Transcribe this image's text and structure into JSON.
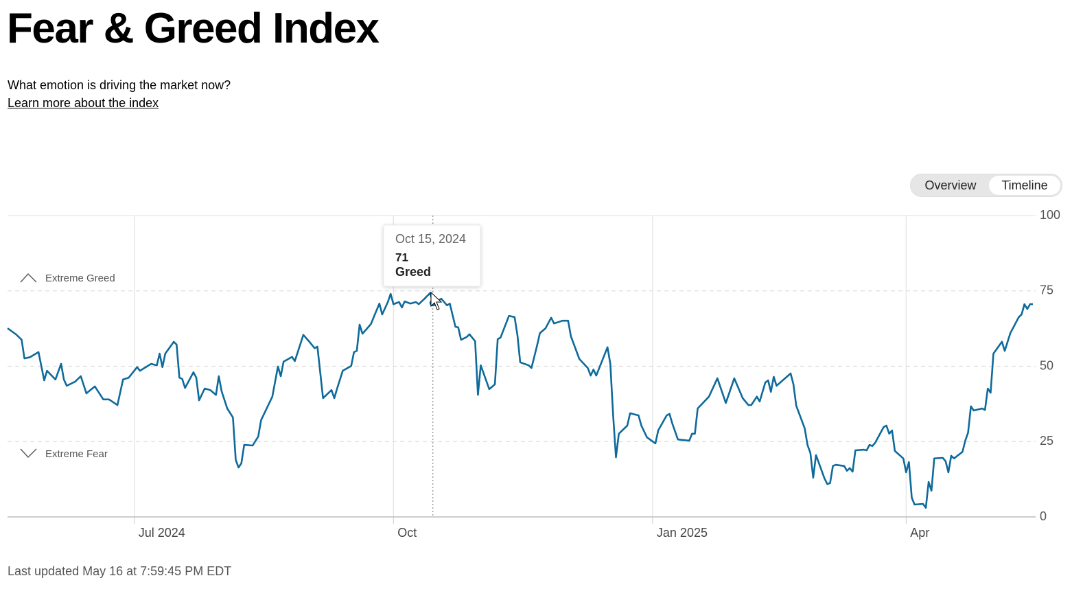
{
  "header": {
    "title": "Fear & Greed Index",
    "subtitle": "What emotion is driving the market now?",
    "link": "Learn more about the index"
  },
  "toggle": {
    "options": [
      "Overview",
      "Timeline"
    ],
    "selected": 1
  },
  "chart_data": {
    "type": "line",
    "color": "#0e6a9b",
    "x": [
      "2024-05-17",
      "2024-05-20",
      "2024-05-22",
      "2024-05-23",
      "2024-05-25",
      "2024-05-28",
      "2024-05-30",
      "2024-05-31",
      "2024-06-03",
      "2024-06-05",
      "2024-06-06",
      "2024-06-07",
      "2024-06-10",
      "2024-06-12",
      "2024-06-14",
      "2024-06-17",
      "2024-06-20",
      "2024-06-22",
      "2024-06-25",
      "2024-06-27",
      "2024-06-29",
      "2024-07-02",
      "2024-07-03",
      "2024-07-07",
      "2024-07-09",
      "2024-07-10",
      "2024-07-11",
      "2024-07-12",
      "2024-07-15",
      "2024-07-16",
      "2024-07-17",
      "2024-07-18",
      "2024-07-19",
      "2024-07-22",
      "2024-07-23",
      "2024-07-24",
      "2024-07-26",
      "2024-07-28",
      "2024-07-30",
      "2024-07-31",
      "2024-08-01",
      "2024-08-03",
      "2024-08-05",
      "2024-08-06",
      "2024-08-07",
      "2024-08-08",
      "2024-08-09",
      "2024-08-12",
      "2024-08-14",
      "2024-08-15",
      "2024-08-19",
      "2024-08-21",
      "2024-08-22",
      "2024-08-23",
      "2024-08-26",
      "2024-08-27",
      "2024-08-30",
      "2024-09-01",
      "2024-09-03",
      "2024-09-04",
      "2024-09-06",
      "2024-09-09",
      "2024-09-10",
      "2024-09-11",
      "2024-09-13",
      "2024-09-16",
      "2024-09-17",
      "2024-09-18",
      "2024-09-19",
      "2024-09-20",
      "2024-09-23",
      "2024-09-24",
      "2024-09-26",
      "2024-09-27",
      "2024-09-29",
      "2024-09-30",
      "2024-10-01",
      "2024-10-03",
      "2024-10-04",
      "2024-10-05",
      "2024-10-07",
      "2024-10-09",
      "2024-10-10",
      "2024-10-12",
      "2024-10-14",
      "2024-10-15",
      "2024-10-18",
      "2024-10-20",
      "2024-10-21",
      "2024-10-23",
      "2024-10-24",
      "2024-10-25",
      "2024-10-27",
      "2024-10-28",
      "2024-10-30",
      "2024-10-31",
      "2024-11-01",
      "2024-11-04",
      "2024-11-06",
      "2024-11-07",
      "2024-11-08",
      "2024-11-11",
      "2024-11-13",
      "2024-11-14",
      "2024-11-15",
      "2024-11-18",
      "2024-11-19",
      "2024-11-21",
      "2024-11-22",
      "2024-11-24",
      "2024-11-26",
      "2024-11-27",
      "2024-11-30",
      "2024-12-02",
      "2024-12-03",
      "2024-12-06",
      "2024-12-09",
      "2024-12-10",
      "2024-12-11",
      "2024-12-12",
      "2024-12-16",
      "2024-12-17",
      "2024-12-18",
      "2024-12-19",
      "2024-12-20",
      "2024-12-23",
      "2024-12-24",
      "2024-12-27",
      "2024-12-28",
      "2024-12-30",
      "2025-01-02",
      "2025-01-03",
      "2025-01-06",
      "2025-01-07",
      "2025-01-08",
      "2025-01-10",
      "2025-01-14",
      "2025-01-15",
      "2025-01-16",
      "2025-01-17",
      "2025-01-21",
      "2025-01-24",
      "2025-01-27",
      "2025-01-30",
      "2025-02-02",
      "2025-02-04",
      "2025-02-05",
      "2025-02-07",
      "2025-02-08",
      "2025-02-10",
      "2025-02-11",
      "2025-02-12",
      "2025-02-13",
      "2025-02-14",
      "2025-02-19",
      "2025-02-20",
      "2025-02-21",
      "2025-02-24",
      "2025-02-25",
      "2025-02-26",
      "2025-02-27",
      "2025-02-28",
      "2025-03-03",
      "2025-03-04",
      "2025-03-05",
      "2025-03-06",
      "2025-03-07",
      "2025-03-10",
      "2025-03-11",
      "2025-03-12",
      "2025-03-13",
      "2025-03-14",
      "2025-03-17",
      "2025-03-18",
      "2025-03-19",
      "2025-03-20",
      "2025-03-21",
      "2025-03-24",
      "2025-03-25",
      "2025-03-26",
      "2025-03-27",
      "2025-03-28",
      "2025-03-31",
      "2025-04-01",
      "2025-04-02",
      "2025-04-03",
      "2025-04-04",
      "2025-04-07",
      "2025-04-08",
      "2025-04-09",
      "2025-04-10",
      "2025-04-11",
      "2025-04-14",
      "2025-04-15",
      "2025-04-16",
      "2025-04-17",
      "2025-04-18",
      "2025-04-21",
      "2025-04-22",
      "2025-04-23",
      "2025-04-24",
      "2025-04-25",
      "2025-04-28",
      "2025-04-29",
      "2025-04-30",
      "2025-05-01",
      "2025-05-02",
      "2025-05-05",
      "2025-05-06",
      "2025-05-08",
      "2025-05-11",
      "2025-05-12",
      "2025-05-13",
      "2025-05-14",
      "2025-05-15",
      "2025-05-16"
    ],
    "values": [
      62.6,
      60.6,
      58.8,
      52.6,
      53,
      54.7,
      45.3,
      48.5,
      45.6,
      50.8,
      45.6,
      43.5,
      44.9,
      46.7,
      41,
      43.3,
      39,
      39,
      37.1,
      45.6,
      46.2,
      49.7,
      48.5,
      50.8,
      50.3,
      54.2,
      49.7,
      54.2,
      58.1,
      57.2,
      46.2,
      45.8,
      42.8,
      48,
      46.2,
      38.7,
      42.6,
      42.1,
      40.5,
      46.7,
      41.7,
      36,
      33,
      18.9,
      16.4,
      17.8,
      23.9,
      23.7,
      26.7,
      32.1,
      39.9,
      49.9,
      46.7,
      51.5,
      53.1,
      51.7,
      60.4,
      58.3,
      56,
      56.5,
      39.4,
      42.1,
      39.4,
      42.6,
      48.5,
      50.1,
      54.7,
      55.1,
      63.8,
      60.8,
      64,
      66.3,
      70.8,
      67.2,
      71.3,
      74,
      70.6,
      71.3,
      69.5,
      71.5,
      70.8,
      71.3,
      70.6,
      72.4,
      74.3,
      71,
      72.4,
      70.2,
      70.8,
      63.1,
      62.9,
      58.8,
      59.7,
      60.6,
      58.3,
      40.5,
      50.3,
      42.4,
      44,
      59,
      59.5,
      66.7,
      66.3,
      60.4,
      51.3,
      50.3,
      49.4,
      56.9,
      61,
      62.6,
      66.1,
      64.2,
      65.1,
      65.1,
      59.9,
      52.4,
      49.4,
      46.9,
      48.9,
      46.9,
      56.3,
      50.8,
      33.7,
      19.8,
      27.6,
      30.3,
      34.4,
      33.7,
      30.3,
      26.4,
      24.4,
      28.7,
      33.7,
      34.2,
      31,
      25.7,
      25.3,
      27.6,
      27.6,
      36,
      39.9,
      46,
      37.8,
      46,
      39.4,
      37.1,
      37.1,
      39.9,
      38.3,
      44.6,
      45.3,
      41.5,
      46.5,
      43.5,
      47.6,
      44,
      36.9,
      29.4,
      23.9,
      21.2,
      13,
      20.5,
      12.8,
      10.9,
      11.2,
      16.9,
      17.3,
      16.9,
      15.3,
      16.2,
      15,
      22.1,
      22.3,
      22.1,
      23.9,
      23.5,
      24.6,
      29.8,
      30.3,
      27.6,
      28.7,
      21.9,
      19.4,
      14.8,
      18.2,
      6.4,
      4.1,
      4.3,
      3,
      11.6,
      8.7,
      19.4,
      19.6,
      18.5,
      14.8,
      20.3,
      19.4,
      21.6,
      25.3,
      28,
      36.7,
      35.3,
      36,
      35.5,
      42.6,
      41.2,
      54.2,
      58.1,
      55.1,
      61,
      66.3,
      67.2,
      70.6,
      69,
      70.6,
      70.6
    ],
    "xlim": [
      "2024-05-17",
      "2025-05-16"
    ],
    "xticks": [
      {
        "value": "2024-07-01",
        "label": "Jul 2024"
      },
      {
        "value": "2024-10-01",
        "label": "Oct"
      },
      {
        "value": "2025-01-01",
        "label": "Jan 2025"
      },
      {
        "value": "2025-04-01",
        "label": "Apr"
      }
    ],
    "ylim": [
      0,
      100
    ],
    "yticks": [
      0,
      25,
      50,
      75,
      100
    ],
    "grid": true,
    "annotations": [
      "Extreme Greed",
      "Extreme Fear"
    ],
    "tooltip": {
      "date": "Oct 15, 2024",
      "value": 71,
      "label": "Greed"
    }
  },
  "footer": "Last updated May 16 at 7:59:45 PM EDT"
}
